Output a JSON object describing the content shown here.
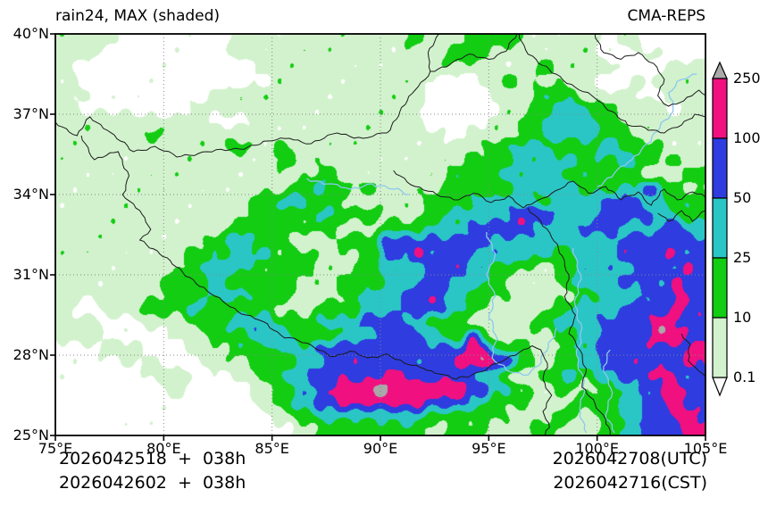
{
  "header": {
    "title": "rain24, MAX (shaded)",
    "model": "CMA-REPS"
  },
  "footer": {
    "init_utc": "2026042518  +  038h",
    "init_cst": "2026042602  +  038h",
    "valid_utc": "2026042708(UTC)",
    "valid_cst": "2026042716(CST)"
  },
  "axes": {
    "x_tick_labels": [
      "75°E",
      "80°E",
      "85°E",
      "90°E",
      "95°E",
      "100°E",
      "105°E"
    ],
    "x_tick_lons": [
      75,
      80,
      85,
      90,
      95,
      100,
      105
    ],
    "y_tick_labels": [
      "40°N",
      "37°N",
      "34°N",
      "31°N",
      "28°N",
      "25°N"
    ],
    "y_tick_lats": [
      40,
      37,
      34,
      31,
      28,
      25
    ],
    "grid_lons": [
      80,
      85,
      90,
      95,
      100
    ],
    "grid_lats": [
      28,
      31,
      34,
      37
    ],
    "lon_range": [
      75,
      105
    ],
    "lat_range": [
      25,
      40
    ],
    "gridline_color": "#888888",
    "frame_color": "#000000"
  },
  "colorbar": {
    "tick_labels": [
      "250",
      "100",
      "50",
      "25",
      "10",
      "0.1"
    ],
    "segment_colors_top_to_bottom": [
      "#f01080",
      "#2e3ce0",
      "#2ac6c6",
      "#12cd12",
      "#d2f2cd"
    ],
    "over_color": "#a9a9a9",
    "under_color": "#ffffff",
    "outline_color": "#000000"
  },
  "chart_data": {
    "type": "heatmap",
    "title": "rain24, MAX (shaded)",
    "model": "CMA-REPS",
    "variable": "rain24 maximum, shaded",
    "levels_mm": [
      0.1,
      10,
      25,
      50,
      100,
      250
    ],
    "lon_range": [
      75,
      105
    ],
    "lat_range": [
      25,
      40
    ],
    "cell_deg": 0.5,
    "palette": {
      ".": "#ffffff",
      "1": "#d2f2cd",
      "2": "#12cd12",
      "3": "#2ac6c6",
      "4": "#2e3ce0",
      "5": "#f01080",
      "6": "#a9a9a9"
    },
    "grid_legend": {
      ".": "<0.1",
      "1": "0.1-10",
      "2": "10-25",
      "3": "25-50",
      "4": "50-100",
      "5": "100-250",
      "6": ">250"
    },
    "grid_rle_rows_north_to_south": [
      "1*6 .*10 1*16 2*2 1*4 2*5 1*7 .*2 1*2 .*6",
      "1*4 .*12 1*20 2*4 1*10 .*4 1*2 .*4",
      "1*2 .*16 1*26 2*2 1*6 .*4 1*4",
      "1*2 .*18 1*14 .*5 1*2 2*2 1*7 .*3 1*7",
      "1*3 .*11 1*20 .*6 1*4 2*4 1*6 .*2 1*4",
      "1*2 .*10 1*22 .*7 1*3 2*2 3*3 2*3 1*4 .*2 1*2",
      "1*14 .*4 1*16 .*6 1*3 2*2 3*5 2*2 1*8",
      "1*8 2*2 1*26 .*2 1*5 2*2 3*5 2*3 1*7",
      "1*16 2*2 1*2 2*2 1*18 2*2 3*4 2*4 3*2 2*4 1*4",
      "1*20 2*2 1*16 2*4 3*6 2*4 3*2 2*4 1*2",
      "1*24 2*2 1*10 2*4 3*6 2*8 1*4 2*2",
      "1*22 2*2 3*1 2*5 1*6 2*6 3*6 2*4 3*2 4*2 2*2 1*2",
      "1*18 2*3 3*2 2*4 1*7 2*4 3*6 2*2 3*4 4*4 3*2 2*4",
      "1*18 2*6 3*2 2*4 1*4 2*2 3*6 4*4 3*4 4*5 3*2 2*3",
      "1*16 2*10 1*4 2*4 3*4 4*6 3*4 4*4 3*4 4*2 3*2",
      "1*14 2*2 3*2 2*4 1*4 2*4 4*10 3*12 4*8",
      "1*12 2*4 3*4 2*4 1*4 2*2 4*3 5*1 4*4 3*8 2*2 3*4 4*4 5*1 4*3",
      "1*12 2*2 3*4 2*6 1*4 2*2 3*4 4*4 3*2 2*4 1*2 2*2 3*6 4*4 5*1 4*1",
      "1*10 2*4 3*2 2*6 1*4 2*4 3*4 4*2 3*4 2*2 1*4 2*2 3*4 4*5 5*1 4*2",
      "1*10 2*4 3*4 2*4 1*4 2*2 3*4 4*4 3*2 2*4 1*6 2*2 3*4 4*3 5*1 4*2",
      "1*2 .*2 1*4 2*4 3*2 2*6 1*4 2*4 3*4 4*4 3*2 2*2 1*6 2*2 3*4 4*5 5*1 4*2",
      "1*4 .*4 1*4 2*4 3*4 2*4 3*4 4*4 3*2 2*4 1*6 2*2 3*4 4*5 5*2 4*3",
      "1*4 .*6 1*4 2*4 3*4 2*4 3*4 4*4 3*2 2*2 5*1 2*1 1*6 2*2 3*2 4*5 5*3 4*2",
      ".*4 1*4 .*4 1*4 2*4 3*4 4*14 5*2 2*4 1*2 2*2 3*2 4*8 5*2",
      ".*6 1*4 .*4 1*4 2*4 3*3 4*12 5*4 4*1 3*1 2*1 1*2 2*2 3*2 4*8 5*2",
      ".*8 1*4 .*4 1*2 2*2 3*3 4*7 5*3 4*5 3*2 2*2 1*2 2*2 3*2 2*2 3*2 4*3 5*2 4*3",
      ".*10 1*2 .*6 1*2 2*2 3*2 4*2 5*3 6*2 5*7 4*2 3*2 2*2 1*2 2*2 1*2 2*2 3*2 4*2 5*2 4*2",
      ".*18 1*2 2*2 3*2 4*2 5*8 4*4 3*2 2*4 1*4 2*4 3*2 4*2 5*2 4*2",
      ".*20 1*2 2*2 3*10 2*8 1*4 2*2 1*2 2*2 3*2 4*3 5*2 4*1",
      ".*22 1*2 2*10 1*2 2*4 1*4 2*2 1*4 2*2 3*2 4*4 5*2"
    ],
    "border_color": "#1b1b1b",
    "borders": [
      [
        [
          75,
          36.7
        ],
        [
          76,
          36.2
        ],
        [
          76.6,
          36.9
        ],
        [
          77.4,
          36.4
        ],
        [
          78.6,
          35.6
        ],
        [
          79.6,
          35.8
        ],
        [
          80.6,
          35.4
        ],
        [
          82,
          35.6
        ],
        [
          83.5,
          35.7
        ],
        [
          84.8,
          36.0
        ],
        [
          85.8,
          36.1
        ],
        [
          86.8,
          35.9
        ],
        [
          88,
          36.3
        ],
        [
          89.2,
          36.1
        ],
        [
          90.3,
          36.3
        ]
      ],
      [
        [
          90.3,
          36.3
        ],
        [
          90.9,
          37.1
        ],
        [
          91.6,
          37.9
        ],
        [
          92.3,
          38.6
        ],
        [
          92.2,
          39.3
        ],
        [
          92.7,
          40
        ]
      ],
      [
        [
          92.3,
          38.6
        ],
        [
          93.2,
          38.85
        ],
        [
          94.1,
          39.25
        ],
        [
          95.0,
          39.05
        ],
        [
          95.8,
          39.35
        ],
        [
          96.3,
          40
        ]
      ],
      [
        [
          96.4,
          40
        ],
        [
          96.7,
          39.4
        ],
        [
          97.3,
          38.9
        ],
        [
          98.1,
          38.5
        ],
        [
          99.0,
          38.0
        ],
        [
          99.9,
          37.6
        ],
        [
          100.7,
          37.1
        ],
        [
          101.4,
          36.6
        ],
        [
          102.2,
          36.5
        ],
        [
          103.1,
          36.3
        ],
        [
          103.9,
          36.6
        ],
        [
          104.5,
          37.0
        ],
        [
          105,
          36.9
        ]
      ],
      [
        [
          99.9,
          40
        ],
        [
          100.3,
          39.3
        ],
        [
          101.1,
          39.05
        ],
        [
          101.9,
          39.3
        ],
        [
          102.6,
          38.9
        ],
        [
          103.1,
          38.3
        ],
        [
          102.8,
          37.7
        ],
        [
          103.3,
          37.3
        ],
        [
          104.0,
          37.5
        ],
        [
          104.7,
          37.9
        ],
        [
          105,
          37.7
        ]
      ],
      [
        [
          90.6,
          34.9
        ],
        [
          91.6,
          34.3
        ],
        [
          92.6,
          34.0
        ],
        [
          93.6,
          33.8
        ],
        [
          94.3,
          34.05
        ],
        [
          95.1,
          33.7
        ],
        [
          95.9,
          33.95
        ],
        [
          96.6,
          33.5
        ],
        [
          97.3,
          33.8
        ],
        [
          98.1,
          34.15
        ],
        [
          98.9,
          34.5
        ],
        [
          99.6,
          34.05
        ],
        [
          100.4,
          34.3
        ],
        [
          101.1,
          33.8
        ],
        [
          101.9,
          34.1
        ],
        [
          102.5,
          33.6
        ],
        [
          103.1,
          34.2
        ],
        [
          103.7,
          33.8
        ],
        [
          104.4,
          34.1
        ],
        [
          105,
          33.9
        ]
      ],
      [
        [
          76.2,
          36.2
        ],
        [
          76.8,
          35.3
        ],
        [
          77.9,
          35.6
        ],
        [
          78.4,
          34.7
        ],
        [
          78.1,
          34.0
        ],
        [
          78.9,
          33.4
        ],
        [
          79.4,
          32.7
        ],
        [
          78.9,
          32.3
        ],
        [
          79.7,
          31.9
        ],
        [
          80.4,
          31.4
        ],
        [
          81.2,
          30.9
        ],
        [
          82.0,
          30.4
        ],
        [
          82.9,
          29.9
        ],
        [
          83.8,
          29.5
        ],
        [
          84.6,
          29.25
        ],
        [
          85.4,
          28.75
        ],
        [
          86.2,
          28.55
        ],
        [
          87.0,
          28.25
        ],
        [
          87.9,
          27.95
        ],
        [
          88.6,
          28.15
        ],
        [
          89.4,
          27.9
        ],
        [
          90.3,
          28.05
        ],
        [
          91.1,
          27.7
        ],
        [
          92.0,
          27.5
        ],
        [
          92.7,
          27.3
        ],
        [
          93.5,
          27.1
        ],
        [
          94.2,
          27.25
        ],
        [
          95.0,
          27.55
        ],
        [
          95.8,
          27.85
        ],
        [
          96.4,
          28.1
        ],
        [
          97.0,
          28.35
        ],
        [
          97.4,
          28.2
        ],
        [
          97.7,
          27.7
        ],
        [
          97.5,
          27.1
        ],
        [
          97.9,
          26.5
        ],
        [
          97.5,
          25.9
        ],
        [
          97.8,
          25.3
        ],
        [
          97.6,
          25
        ]
      ],
      [
        [
          96.8,
          33.5
        ],
        [
          97.4,
          33.0
        ],
        [
          97.9,
          32.4
        ],
        [
          98.4,
          31.7
        ],
        [
          98.7,
          31.0
        ],
        [
          98.5,
          30.2
        ],
        [
          99.0,
          29.5
        ],
        [
          98.7,
          28.8
        ],
        [
          99.2,
          28.2
        ],
        [
          99.5,
          27.5
        ],
        [
          99.3,
          26.8
        ],
        [
          99.9,
          26.2
        ],
        [
          100.4,
          25.6
        ],
        [
          100.6,
          25
        ]
      ],
      [
        [
          105,
          33.4
        ],
        [
          104.4,
          33.0
        ],
        [
          103.9,
          33.4
        ],
        [
          103.3,
          33.0
        ],
        [
          102.8,
          33.3
        ]
      ],
      [
        [
          103.9,
          28.8
        ],
        [
          104.3,
          28.4
        ],
        [
          104.2,
          27.8
        ],
        [
          104.7,
          27.4
        ],
        [
          105,
          27.2
        ]
      ]
    ],
    "river_color": "#8ec8ee",
    "rivers": [
      [
        [
          100.0,
          34.3
        ],
        [
          100.8,
          34.8
        ],
        [
          101.6,
          35.3
        ],
        [
          102.3,
          35.9
        ],
        [
          102.9,
          36.5
        ],
        [
          103.5,
          37.1
        ],
        [
          103.3,
          37.8
        ],
        [
          103.9,
          38.3
        ],
        [
          104.6,
          38.5
        ]
      ],
      [
        [
          86.6,
          34.6
        ],
        [
          87.6,
          34.4
        ],
        [
          88.6,
          34.2
        ],
        [
          89.6,
          34.4
        ],
        [
          90.6,
          34.2
        ],
        [
          91.3,
          34.0
        ]
      ],
      [
        [
          94.9,
          32.6
        ],
        [
          95.3,
          31.8
        ],
        [
          94.9,
          31.0
        ],
        [
          95.3,
          30.2
        ],
        [
          95.0,
          29.4
        ],
        [
          95.4,
          28.6
        ],
        [
          95.15,
          27.9
        ],
        [
          95.8,
          27.45
        ],
        [
          96.6,
          27.25
        ],
        [
          97.3,
          27.6
        ],
        [
          97.75,
          28.3
        ],
        [
          98.1,
          29.0
        ]
      ],
      [
        [
          98.9,
          32.0
        ],
        [
          99.25,
          31.0
        ],
        [
          98.95,
          30.0
        ],
        [
          99.3,
          29.0
        ],
        [
          99.05,
          28.0
        ],
        [
          99.4,
          27.0
        ],
        [
          99.2,
          26.0
        ],
        [
          99.5,
          25.1
        ]
      ],
      [
        [
          100.6,
          28.2
        ],
        [
          100.3,
          27.4
        ],
        [
          100.7,
          26.6
        ],
        [
          100.4,
          25.8
        ],
        [
          100.8,
          25.1
        ]
      ]
    ]
  }
}
